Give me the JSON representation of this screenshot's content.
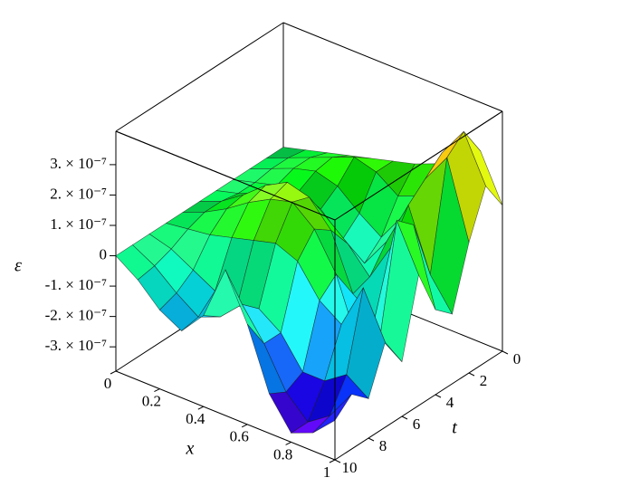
{
  "chart_data": {
    "type": "surface",
    "x": [
      0,
      0.1,
      0.2,
      0.3,
      0.4,
      0.5,
      0.6,
      0.7,
      0.8,
      0.9,
      1
    ],
    "y": [
      0,
      1,
      2,
      3,
      4,
      5,
      6,
      7,
      8,
      9,
      10
    ],
    "z": [
      [
        0,
        2e-08,
        4e-08,
        6e-08,
        8e-08,
        1e-07,
        1.2e-07,
        1.5e-07,
        2e-07,
        2.5e-07,
        1e-07
      ],
      [
        0,
        3e-08,
        6e-08,
        9e-08,
        1.2e-07,
        1e-07,
        5e-08,
        8e-08,
        2.5e-07,
        3.5e-07,
        2e-07
      ],
      [
        0,
        3e-08,
        6e-08,
        8e-08,
        6e-08,
        0,
        -5e-08,
        5e-08,
        2e-07,
        3e-07,
        5e-08
      ],
      [
        0,
        2e-08,
        4e-08,
        5e-08,
        2e-08,
        -5e-08,
        -1e-07,
        0,
        1.5e-07,
        -5e-08,
        -1.5e-07
      ],
      [
        0,
        2e-08,
        5e-08,
        8e-08,
        1e-07,
        6e-08,
        0,
        -8e-08,
        5e-08,
        1.5e-07,
        -1e-07
      ],
      [
        0,
        3e-08,
        8e-08,
        1.4e-07,
        1.8e-07,
        1.6e-07,
        8e-08,
        -1e-07,
        -1.5e-07,
        2e-07,
        5e-08
      ],
      [
        0,
        3e-08,
        7e-08,
        1.2e-07,
        1.6e-07,
        1.8e-07,
        1.2e-07,
        0,
        -2e-07,
        -1.5e-07,
        -2e-07
      ],
      [
        0,
        1e-08,
        2e-08,
        4e-08,
        6e-08,
        8e-08,
        5e-08,
        -5e-08,
        -1e-07,
        5e-08,
        -1e-07
      ],
      [
        0,
        -2e-08,
        -6e-08,
        -1e-07,
        -1.2e-07,
        -1e-07,
        -1.5e-07,
        -2.5e-07,
        -2.5e-07,
        -2e-07,
        -2.5e-07
      ],
      [
        0,
        -4e-08,
        -1e-07,
        -1.5e-07,
        -1.2e-07,
        -5e-08,
        -1.5e-07,
        -2.8e-07,
        -3.5e-07,
        -3e-07,
        -2e-07
      ],
      [
        0,
        -5e-08,
        -1.2e-07,
        -1.6e-07,
        -8e-08,
        1e-07,
        -5e-08,
        -2.5e-07,
        -3.5e-07,
        -3.2e-07,
        -2.5e-07
      ]
    ],
    "xlabel": "x",
    "ylabel": "t",
    "zlabel": "ε",
    "xlim": [
      0,
      1
    ],
    "ylim": [
      0,
      10
    ],
    "zlim": [
      -3.8e-07,
      4.1e-07
    ],
    "xticks": [
      0,
      0.2,
      0.4,
      0.6,
      0.8,
      1
    ],
    "yticks": [
      0,
      2,
      4,
      6,
      8,
      10
    ],
    "zticks": [
      {
        "value": -3e-07,
        "label": "-3. × 10⁻⁷"
      },
      {
        "value": -2e-07,
        "label": "-2. × 10⁻⁷"
      },
      {
        "value": -1e-07,
        "label": "-1. × 10⁻⁷"
      },
      0,
      {
        "value": 1e-07,
        "label": "1. × 10⁻⁷"
      },
      {
        "value": 2e-07,
        "label": "2. × 10⁻⁷"
      },
      {
        "value": 3e-07,
        "label": "3. × 10⁻⁷"
      }
    ]
  }
}
